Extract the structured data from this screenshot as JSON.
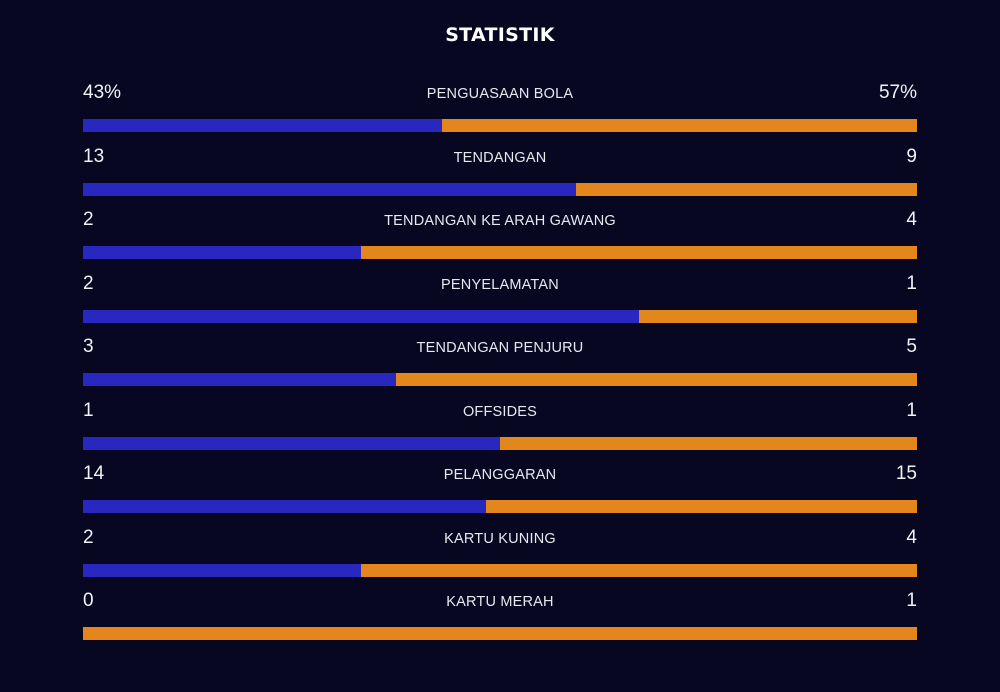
{
  "title": "STATISTIK",
  "colors": {
    "background": "#070722",
    "home_bar": "#2828c0",
    "away_bar": "#e3861c"
  },
  "stats": [
    {
      "label": "PENGUASAAN BOLA",
      "home": "43%",
      "away": "57%",
      "home_value": 43,
      "away_value": 57
    },
    {
      "label": "TENDANGAN",
      "home": "13",
      "away": "9",
      "home_value": 13,
      "away_value": 9
    },
    {
      "label": "TENDANGAN KE ARAH GAWANG",
      "home": "2",
      "away": "4",
      "home_value": 2,
      "away_value": 4
    },
    {
      "label": "PENYELAMATAN",
      "home": "2",
      "away": "1",
      "home_value": 2,
      "away_value": 1
    },
    {
      "label": "TENDANGAN PENJURU",
      "home": "3",
      "away": "5",
      "home_value": 3,
      "away_value": 5
    },
    {
      "label": "OFFSIDES",
      "home": "1",
      "away": "1",
      "home_value": 1,
      "away_value": 1
    },
    {
      "label": "PELANGGARAN",
      "home": "14",
      "away": "15",
      "home_value": 14,
      "away_value": 15
    },
    {
      "label": "KARTU KUNING",
      "home": "2",
      "away": "4",
      "home_value": 2,
      "away_value": 4
    },
    {
      "label": "KARTU MERAH",
      "home": "0",
      "away": "1",
      "home_value": 0,
      "away_value": 1
    }
  ]
}
